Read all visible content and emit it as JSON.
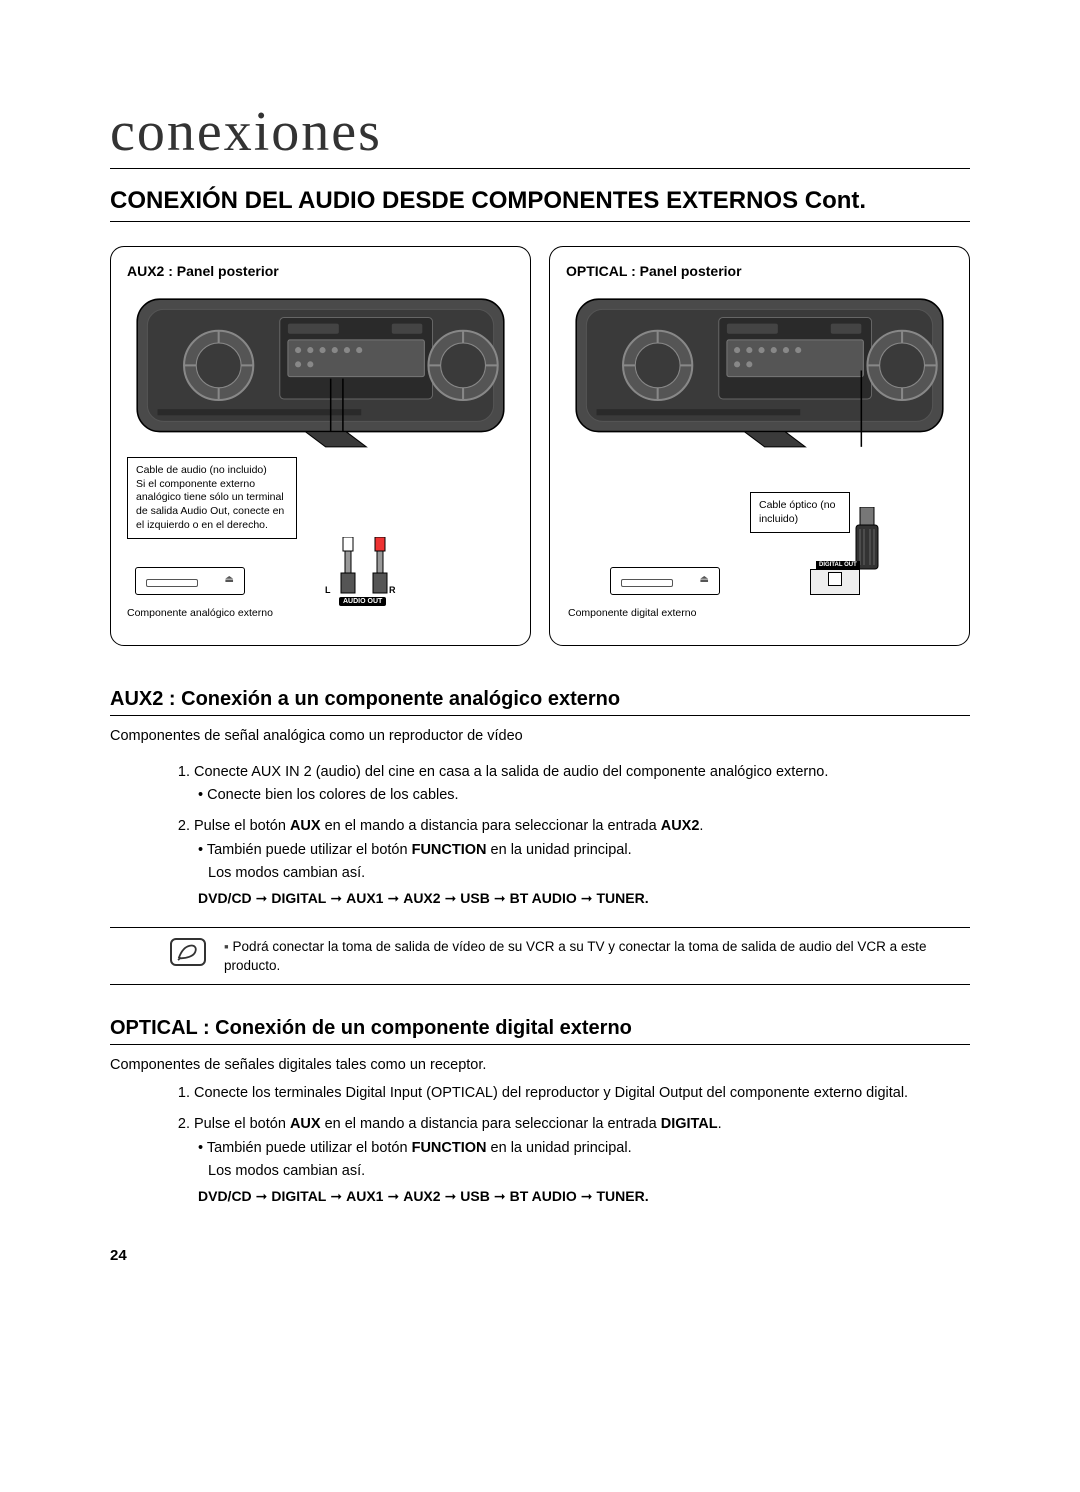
{
  "chapter": "conexiones",
  "sectionTitle": "CONEXIÓN DEL AUDIO DESDE COMPONENTES EXTERNOS Cont.",
  "diagrams": {
    "left": {
      "label": "AUX2 : Panel posterior",
      "callout1": "Cable de audio (no incluido)",
      "callout2": "Si el componente externo analógico tiene sólo un terminal de salida Audio Out, conecte en el izquierdo o en el derecho.",
      "componentLabel": "Componente analógico externo",
      "audioOut": "AUDIO OUT",
      "l": "L",
      "r": "R"
    },
    "right": {
      "label": "OPTICAL : Panel posterior",
      "callout": "Cable óptico (no incluido)",
      "componentLabel": "Componente digital externo",
      "digitalOut": "DIGITAL OUT"
    }
  },
  "aux2": {
    "title": "AUX2 : Conexión a un componente analógico externo",
    "intro": "Componentes de señal analógica como un reproductor de vídeo",
    "step1": "Conecte AUX IN 2 (audio) del cine en casa a la salida de audio del componente analógico externo.",
    "step1sub": "Conecte bien los colores de los cables.",
    "step2a": "Pulse el botón ",
    "step2aux": "AUX",
    "step2b": " en el mando a distancia para seleccionar la entrada ",
    "step2aux2": "AUX2",
    "step2c": ".",
    "step2sub1a": "También puede utilizar el botón ",
    "step2func": "FUNCTION",
    "step2sub1b": " en la unidad principal.",
    "step2sub2": "Los modos cambian así.",
    "chain": [
      "DVD/CD",
      "DIGITAL",
      "AUX1",
      "AUX2",
      "USB",
      "BT AUDIO",
      "TUNER"
    ]
  },
  "note": "Podrá conectar la toma de salida de vídeo de su VCR a su TV y conectar la toma de salida de audio del VCR a este producto.",
  "optical": {
    "title": "OPTICAL : Conexión de un componente digital externo",
    "intro": "Componentes de señales digitales tales como un receptor.",
    "step1": "Conecte los terminales Digital Input (OPTICAL) del reproductor y Digital Output del componente externo digital.",
    "step2a": "Pulse el botón ",
    "step2aux": "AUX",
    "step2b": " en el mando a distancia para seleccionar la entrada ",
    "step2dig": "DIGITAL",
    "step2c": ".",
    "step2sub1a": "También puede utilizar el botón ",
    "step2func": "FUNCTION",
    "step2sub1b": " en la unidad principal.",
    "step2sub2": "Los modos cambian así.",
    "chain": [
      "DVD/CD",
      "DIGITAL",
      "AUX1",
      "AUX2",
      "USB",
      "BT AUDIO",
      "TUNER"
    ]
  },
  "pageNumber": "24",
  "colors": {
    "text": "#000000",
    "border": "#000000",
    "chapter": "#333333"
  }
}
